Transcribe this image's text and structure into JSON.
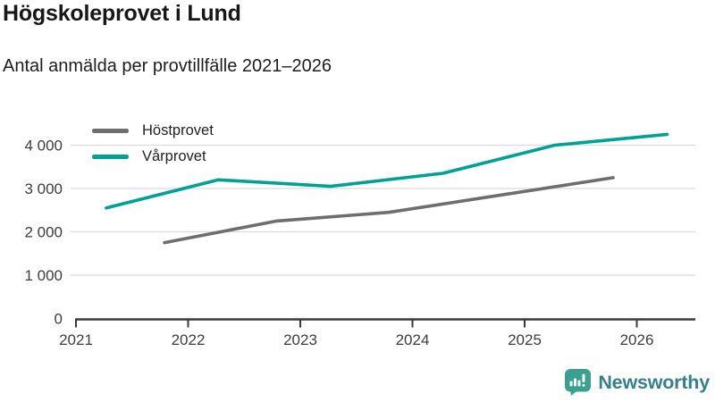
{
  "header": {
    "title": "Högskoleprovet i Lund",
    "subtitle": "Antal anmälda per provtillfälle 2021–2026"
  },
  "chart_data": {
    "type": "line",
    "title": "Högskoleprovet i Lund",
    "subtitle": "Antal anmälda per provtillfälle 2021–2026",
    "xlabel": "",
    "ylabel": "",
    "xlim": [
      2021,
      2026.52
    ],
    "ylim": [
      0,
      4450
    ],
    "grid": "horizontal-only",
    "legend_position": "top-left",
    "x_ticks": [
      2021,
      2022,
      2023,
      2024,
      2025,
      2026
    ],
    "y_ticks": [
      {
        "value": 0,
        "label": "0"
      },
      {
        "value": 1000,
        "label": "1 000"
      },
      {
        "value": 2000,
        "label": "2 000"
      },
      {
        "value": 3000,
        "label": "3 000"
      },
      {
        "value": 4000,
        "label": "4 000"
      }
    ],
    "series": [
      {
        "name": "Höstprovet",
        "color": "#6e6e6e",
        "points": [
          {
            "x": 2021.79,
            "y": 1750
          },
          {
            "x": 2022.79,
            "y": 2250
          },
          {
            "x": 2023.79,
            "y": 2450
          },
          {
            "x": 2024.79,
            "y": 2850
          },
          {
            "x": 2025.79,
            "y": 3250
          }
        ]
      },
      {
        "name": "Vårprovet",
        "color": "#00a296",
        "points": [
          {
            "x": 2021.27,
            "y": 2550
          },
          {
            "x": 2022.27,
            "y": 3200
          },
          {
            "x": 2023.27,
            "y": 3050
          },
          {
            "x": 2024.27,
            "y": 3350
          },
          {
            "x": 2025.27,
            "y": 4000
          },
          {
            "x": 2026.27,
            "y": 4250
          }
        ]
      }
    ]
  },
  "footer": {
    "brand": "Newsworthy",
    "logo_icon": "bar-chart-speech-bubble-icon",
    "brand_text_color": "#35808e",
    "brand_icon_color": "#3aa08f"
  }
}
